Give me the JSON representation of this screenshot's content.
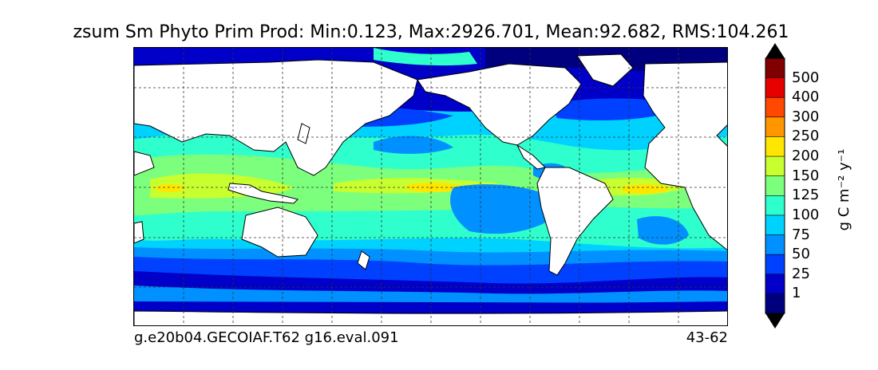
{
  "title": "zsum Sm Phyto Prim Prod: Min:0.123, Max:2926.701, Mean:92.682, RMS:104.261",
  "footer": {
    "left": "g.e20b04.GECOIAF.T62 g16.eval.091",
    "right": "43-62"
  },
  "colorbar": {
    "label": "g C m⁻² y⁻¹",
    "ticks": [
      "1",
      "25",
      "50",
      "75",
      "100",
      "125",
      "150",
      "200",
      "250",
      "300",
      "400",
      "500"
    ],
    "colors": [
      "#00007f",
      "#0000c8",
      "#0040ff",
      "#0090ff",
      "#00d2ff",
      "#2effcc",
      "#7cff7c",
      "#c8ff2e",
      "#ffe600",
      "#ff9600",
      "#ff4800",
      "#e60000",
      "#800000"
    ]
  },
  "chart_data": {
    "type": "heatmap",
    "title": "zsum Sm Phyto Prim Prod: Min:0.123, Max:2926.701, Mean:92.682, RMS:104.261",
    "units": "g C m⁻² y⁻¹",
    "levels": [
      1,
      25,
      50,
      75,
      100,
      125,
      150,
      200,
      250,
      300,
      400,
      500
    ],
    "stats": {
      "min": 0.123,
      "max": 2926.701,
      "mean": 92.682,
      "rms": 104.261
    },
    "grid": true
  }
}
